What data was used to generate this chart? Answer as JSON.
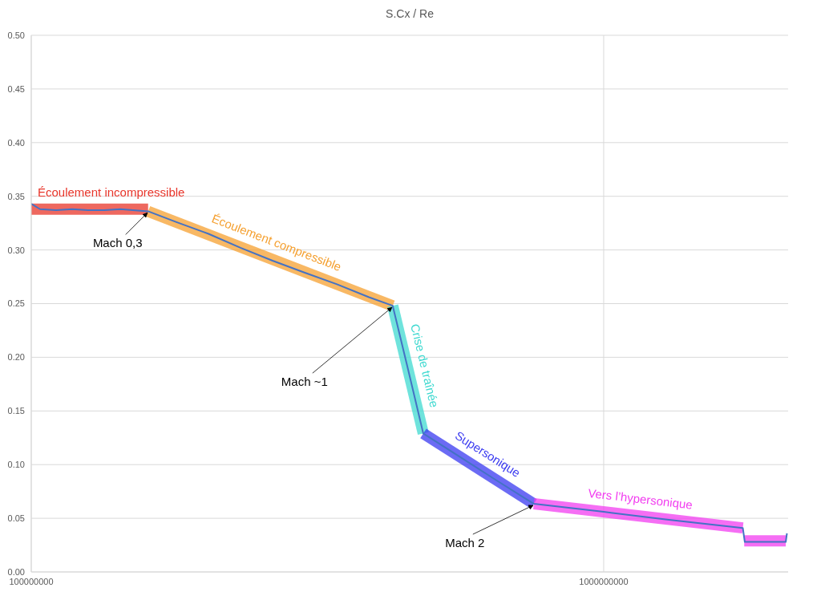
{
  "chart_data": {
    "type": "line",
    "title": "S.Cx / Re",
    "log": "x",
    "grid": true,
    "xlim": [
      100000000,
      2100000000
    ],
    "xticks": [
      100000000,
      1000000000
    ],
    "ylim": [
      0,
      0.5
    ],
    "yticks": [
      {
        "value": 0,
        "label": "0.00"
      },
      {
        "value": 0.05,
        "label": "0.05"
      },
      {
        "value": 0.1,
        "label": "0.10"
      },
      {
        "value": 0.15,
        "label": "0.15"
      },
      {
        "value": 0.2,
        "label": "0.20"
      },
      {
        "value": 0.25,
        "label": "0.25"
      },
      {
        "value": 0.3,
        "label": "0.30"
      },
      {
        "value": 0.35,
        "label": "0.35"
      },
      {
        "value": 0.4,
        "label": "0.40"
      },
      {
        "value": 0.45,
        "label": "0.45"
      },
      {
        "value": 0.5,
        "label": "0.50"
      }
    ],
    "series": [
      {
        "color": "#4472c4",
        "x": [
          100000000,
          103600000,
          110500000,
          117900000,
          125700000,
          134100000,
          143100000,
          160000000,
          179300000,
          204000000,
          232000000,
          264000000,
          300000000,
          342000000,
          389000000,
          428000000,
          457000000,
          484000000,
          554000000,
          651000000,
          755000000,
          1000000000,
          1282000000,
          1750000000,
          1764000000,
          2080000000,
          2090000000
        ],
        "values": [
          0.343,
          0.338,
          0.337,
          0.338,
          0.337,
          0.337,
          0.338,
          0.336,
          0.326,
          0.315,
          0.302,
          0.29,
          0.279,
          0.268,
          0.256,
          0.248,
          0.185,
          0.129,
          0.109,
          0.085,
          0.0635,
          0.056,
          0.049,
          0.041,
          0.028,
          0.028,
          0.036
        ]
      },
      {
        "name": "Écoulement incompressible",
        "color": "#e8352a",
        "x": [
          100000000,
          160000000
        ],
        "values": [
          0.338,
          0.338
        ]
      },
      {
        "name": "Écoulement compressible",
        "color": "#f5a030",
        "x": [
          160000000,
          428000000
        ],
        "values": [
          0.336,
          0.248
        ]
      },
      {
        "name": "Crise de traînée",
        "color": "#3fd9d0",
        "x": [
          428000000,
          484000000
        ],
        "values": [
          0.248,
          0.129
        ]
      },
      {
        "name": "Supersonique",
        "color": "#3a3af0",
        "x": [
          484000000,
          755000000
        ],
        "values": [
          0.129,
          0.0635
        ]
      },
      {
        "name": "Vers l’hypersonique",
        "color": "#f23ef0",
        "x": [
          755000000,
          1750000000,
          1755000000,
          1760000000,
          2080000000
        ],
        "values": [
          0.0635,
          0.041,
          null,
          0.029,
          0.029
        ]
      }
    ],
    "annotations": [
      {
        "text": "Mach 0,3",
        "x": 160000000,
        "y": 0.336
      },
      {
        "text": "Mach ~1",
        "x": 428000000,
        "y": 0.248
      },
      {
        "text": "Mach 2",
        "x": 755000000,
        "y": 0.0635
      }
    ]
  }
}
